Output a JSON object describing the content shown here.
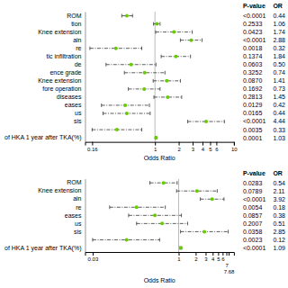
{
  "chart_data": [
    {
      "type": "forest",
      "categories": [
        "ROM",
        "tion",
        "Knee extension",
        "ain",
        "re",
        "tic infiltration",
        "de",
        "ence grade",
        "Knee extension",
        "fore operation",
        " diseases",
        "eases",
        "us",
        "sis",
        null,
        "of HKA 1 year after TKA(%)"
      ],
      "values": [
        0.44,
        1.06,
        1.74,
        2.88,
        0.32,
        1.84,
        0.5,
        0.74,
        1.41,
        0.73,
        1.45,
        0.42,
        0.44,
        4.44,
        0.33,
        1.03
      ],
      "ci_lo": [
        0.38,
        0.96,
        1.02,
        2.1,
        0.15,
        1.2,
        0.24,
        0.41,
        0.95,
        0.46,
        0.97,
        0.21,
        0.22,
        2.6,
        0.16,
        1.01
      ],
      "ci_hi": [
        0.52,
        1.16,
        2.97,
        3.95,
        0.68,
        2.82,
        1.03,
        1.34,
        2.1,
        1.16,
        2.18,
        0.85,
        0.87,
        7.57,
        0.68,
        1.05
      ],
      "data_labels": true,
      "value_labels": [
        "0.44",
        "1.06",
        "1.74",
        "2.88",
        "0.32",
        "1.84",
        "0.50",
        "0.74",
        "1.41",
        "0.73",
        "1.45",
        "0.42",
        "0.44",
        "4.44",
        "0.33",
        "1.03"
      ],
      "pvalues": [
        "<0.0001",
        "0.2533",
        "0.0423",
        "<0.0001",
        "0.0018",
        "0.1374",
        "0.0603",
        "0.3252",
        "0.0870",
        "0.1692",
        "0.2813",
        "0.0129",
        "0.0165",
        "<0.0001",
        "0.0035",
        "0.0001"
      ],
      "column_titles": [
        "P-value",
        "OR"
      ],
      "xlabel": "Odds Ratio",
      "log": "x",
      "xlim": [
        0.13,
        10
      ],
      "xticks": [
        0.16,
        1,
        2,
        3,
        4,
        5,
        6,
        10
      ],
      "reference_line": 1.0,
      "color": "#66cc00"
    },
    {
      "type": "forest",
      "categories": [
        "ROM",
        "Knee extension",
        "ain",
        "re",
        "eases",
        "us",
        "sis",
        null,
        "of HKA 1 year after TKA(%)"
      ],
      "values": [
        0.54,
        2.11,
        3.92,
        0.18,
        0.38,
        0.51,
        2.85,
        0.12,
        1.09
      ],
      "ci_lo": [
        0.31,
        0.92,
        2.42,
        0.06,
        0.13,
        0.18,
        1.08,
        0.03,
        1.05
      ],
      "ci_hi": [
        0.94,
        4.82,
        6.35,
        0.58,
        1.12,
        1.44,
        7.54,
        0.46,
        1.13
      ],
      "data_labels": true,
      "value_labels": [
        "0.54",
        "2.11",
        "3.92",
        "0.18",
        "0.38",
        "0.51",
        "2.85",
        "0.12",
        "1.09"
      ],
      "pvalues": [
        "0.0283",
        "0.0789",
        "<0.0001",
        "0.0054",
        "0.0857",
        "0.2007",
        "0.0358",
        "0.0023",
        "<0.0001"
      ],
      "column_titles": [
        "P-value",
        "OR"
      ],
      "xlabel": "Odds Ratio",
      "log": "x",
      "xlim": [
        0.022,
        9.5
      ],
      "xticks": [
        0.03,
        1,
        2,
        3,
        4,
        5,
        6,
        7,
        7.68
      ],
      "reference_line": 1.0,
      "color": "#66cc00"
    }
  ]
}
